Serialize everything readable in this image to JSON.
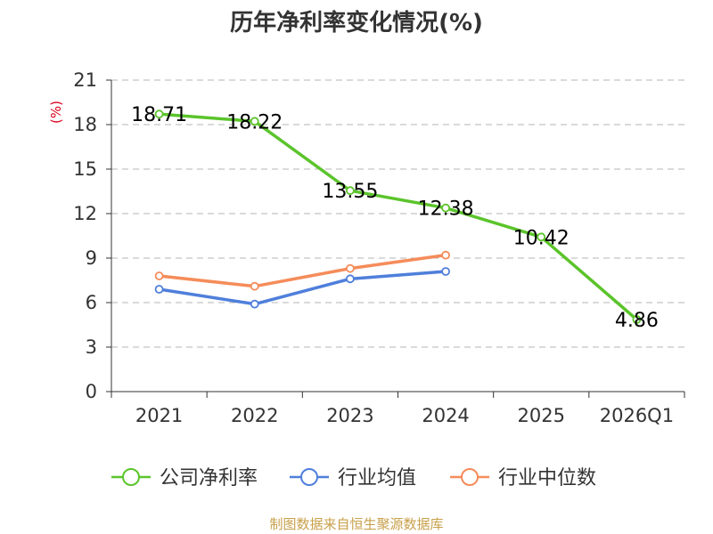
{
  "chart_data": {
    "type": "line",
    "title": "历年净利率变化情况(%)",
    "xlabel": "",
    "ylabel": "(%)",
    "categories": [
      "2021",
      "2022",
      "2023",
      "2024",
      "2025",
      "2026Q1"
    ],
    "ylim": [
      0,
      21
    ],
    "yticks": [
      0,
      3,
      6,
      9,
      12,
      15,
      18,
      21
    ],
    "grid": true,
    "legend_position": "bottom",
    "series": [
      {
        "name": "公司净利率",
        "color": "#5bc42b",
        "values": [
          18.71,
          18.22,
          13.55,
          12.38,
          10.42,
          4.86
        ],
        "labels": [
          "18.71",
          "18.22",
          "13.55",
          "12.38",
          "10.42",
          "4.86"
        ]
      },
      {
        "name": "行业均值",
        "color": "#4f7fdb",
        "values": [
          6.9,
          5.9,
          7.6,
          8.1,
          null,
          null
        ]
      },
      {
        "name": "行业中位数",
        "color": "#f58c5a",
        "values": [
          7.8,
          7.1,
          8.3,
          9.2,
          null,
          null
        ]
      }
    ]
  },
  "source": "制图数据来自恒生聚源数据库"
}
